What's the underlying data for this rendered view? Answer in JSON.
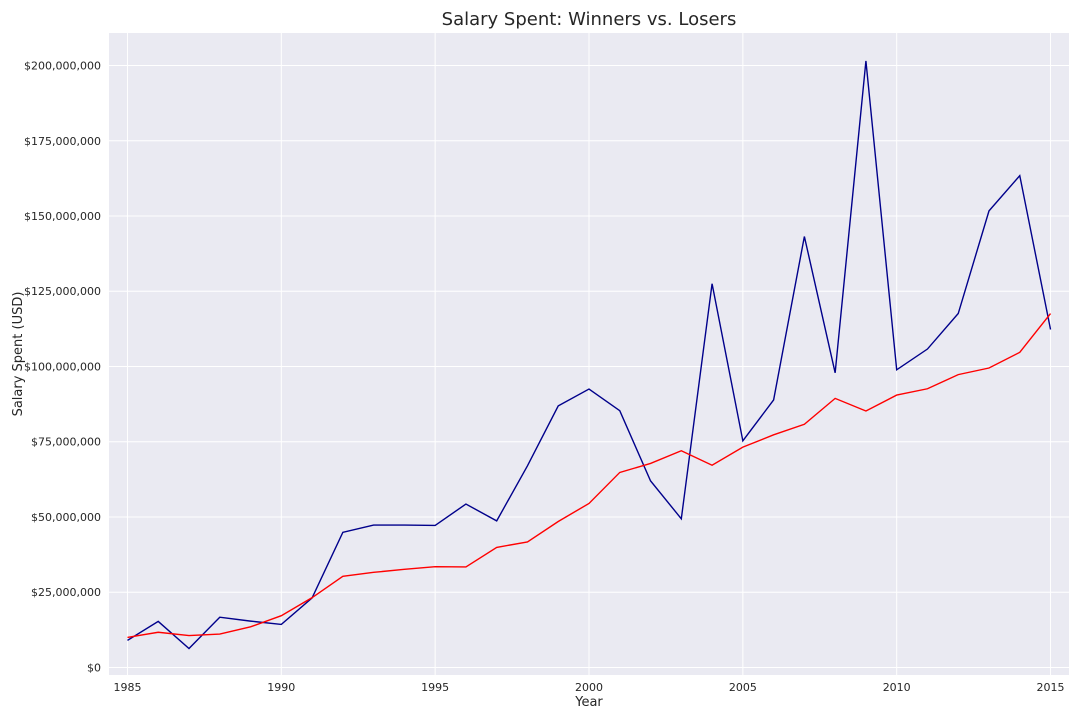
{
  "chart_data": {
    "type": "line",
    "title": "Salary Spent: Winners vs. Losers",
    "xlabel": "Year",
    "ylabel": "Salary Spent (USD)",
    "xlim": [
      1984.4,
      2015.6
    ],
    "ylim": [
      -2500000,
      210800000
    ],
    "grid": true,
    "x_ticks": [
      1985,
      1990,
      1995,
      2000,
      2005,
      2010,
      2015
    ],
    "x_tick_labels": [
      "1985",
      "1990",
      "1995",
      "2000",
      "2005",
      "2010",
      "2015"
    ],
    "y_ticks": [
      0,
      25000000,
      50000000,
      75000000,
      100000000,
      125000000,
      150000000,
      175000000,
      200000000
    ],
    "y_tick_labels": [
      "$0",
      "$25,000,000",
      "$50,000,000",
      "$75,000,000",
      "$100,000,000",
      "$125,000,000",
      "$150,000,000",
      "$175,000,000",
      "$200,000,000"
    ],
    "x": [
      1985,
      1986,
      1987,
      1988,
      1989,
      1990,
      1991,
      1992,
      1993,
      1994,
      1995,
      1996,
      1997,
      1998,
      1999,
      2000,
      2001,
      2002,
      2003,
      2004,
      2005,
      2006,
      2007,
      2008,
      2009,
      2010,
      2011,
      2012,
      2013,
      2014,
      2015
    ],
    "series": [
      {
        "color": "#00008b",
        "values": [
          9000000,
          15300000,
          6300000,
          16700000,
          15400000,
          14300000,
          23100000,
          44900000,
          47300000,
          47300000,
          47200000,
          54300000,
          48700000,
          67000000,
          86900000,
          92500000,
          85300000,
          62000000,
          49400000,
          127500000,
          75300000,
          88900000,
          143200000,
          97900000,
          201500000,
          98900000,
          105800000,
          117600000,
          151700000,
          163400000,
          112300000
        ]
      },
      {
        "color": "#ff0000",
        "values": [
          10000000,
          11700000,
          10600000,
          11100000,
          13500000,
          17200000,
          23200000,
          30300000,
          31600000,
          32600000,
          33500000,
          33400000,
          39900000,
          41700000,
          48500000,
          54500000,
          64800000,
          67800000,
          72000000,
          67200000,
          73200000,
          77300000,
          80800000,
          89400000,
          85200000,
          90500000,
          92600000,
          97300000,
          99500000,
          104700000,
          117600000
        ]
      }
    ]
  }
}
